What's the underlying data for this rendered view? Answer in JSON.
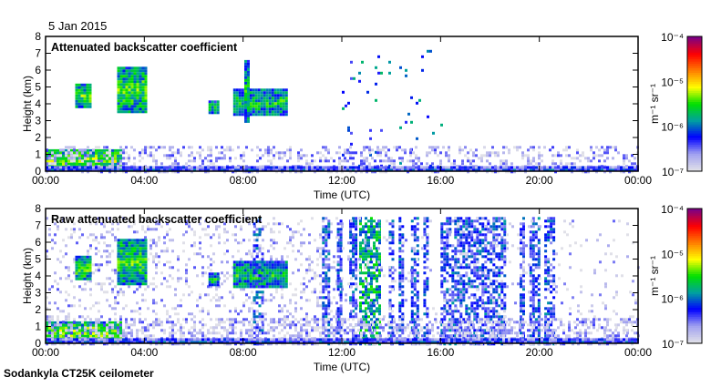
{
  "chart_data": {
    "type": "heatmap",
    "date_label": "5 Jan 2015",
    "footer": "Sodankyla CT25K ceilometer",
    "xlabel": "Time (UTC)",
    "ylabel": "Height (km)",
    "x_ticks": [
      "00:00",
      "04:00",
      "08:00",
      "12:00",
      "16:00",
      "20:00",
      "00:00"
    ],
    "xlim_hours": [
      0,
      24
    ],
    "y_ticks": [
      "0",
      "1",
      "2",
      "3",
      "4",
      "5",
      "6",
      "7",
      "8"
    ],
    "ylim_km": [
      0,
      8
    ],
    "colorbar": {
      "label": "m⁻¹ sr⁻¹",
      "ticks": [
        "10⁻⁷",
        "10⁻⁶",
        "10⁻⁵",
        "10⁻⁴"
      ],
      "range_log10": [
        -7,
        -4
      ],
      "colors": [
        "#e0e0e8",
        "#a0a0f0",
        "#0000ff",
        "#00a0a0",
        "#00e000",
        "#ffff00",
        "#ff8000",
        "#ff0000",
        "#800080"
      ]
    },
    "panels": [
      {
        "title": "Attenuated backscatter coefficient",
        "features": [
          {
            "t": [
              0,
              3.0
            ],
            "h": [
              0.1,
              1.3
            ],
            "level": 0.55
          },
          {
            "t": [
              1.2,
              1.8
            ],
            "h": [
              3.8,
              5.2
            ],
            "level": 0.5
          },
          {
            "t": [
              2.9,
              4.1
            ],
            "h": [
              3.5,
              6.2
            ],
            "level": 0.5
          },
          {
            "t": [
              6.6,
              7.0
            ],
            "h": [
              3.5,
              4.2
            ],
            "level": 0.45
          },
          {
            "t": [
              7.6,
              9.8
            ],
            "h": [
              3.4,
              4.9
            ],
            "level": 0.45
          },
          {
            "t": [
              8.05,
              8.2
            ],
            "h": [
              3.0,
              6.6
            ],
            "level": 0.45
          },
          {
            "t": [
              12.0,
              16.0
            ],
            "h": [
              0.2,
              7.2
            ],
            "level": 0.3,
            "sparse": 0.03
          },
          {
            "t": [
              0,
              24
            ],
            "h": [
              0,
              1.5
            ],
            "level": 0.08,
            "sparse": 0.35
          },
          {
            "t": [
              0,
              24
            ],
            "h": [
              0,
              0.3
            ],
            "level": 0.25
          }
        ]
      },
      {
        "title": "Raw attenuated backscatter coefficient",
        "features": [
          {
            "t": [
              0,
              12
            ],
            "h": [
              0,
              7.5
            ],
            "level": 0.06,
            "sparse": 0.18
          },
          {
            "t": [
              0,
              3.0
            ],
            "h": [
              0.1,
              1.3
            ],
            "level": 0.55
          },
          {
            "t": [
              1.2,
              1.8
            ],
            "h": [
              3.8,
              5.2
            ],
            "level": 0.5
          },
          {
            "t": [
              2.9,
              4.1
            ],
            "h": [
              3.5,
              6.2
            ],
            "level": 0.5
          },
          {
            "t": [
              6.6,
              7.0
            ],
            "h": [
              3.5,
              4.2
            ],
            "level": 0.45
          },
          {
            "t": [
              7.6,
              9.8
            ],
            "h": [
              3.4,
              4.9
            ],
            "level": 0.45
          },
          {
            "t": [
              8.4,
              8.8
            ],
            "h": [
              0,
              7.5
            ],
            "level": 0.25,
            "sparse": 0.5
          },
          {
            "t": [
              11.2,
              11.5
            ],
            "h": [
              0,
              7.5
            ],
            "level": 0.25,
            "sparse": 0.6
          },
          {
            "t": [
              11.8,
              12.0
            ],
            "h": [
              0,
              7.5
            ],
            "level": 0.25,
            "sparse": 0.6
          },
          {
            "t": [
              12.3,
              12.6
            ],
            "h": [
              0,
              7.5
            ],
            "level": 0.25,
            "sparse": 0.6
          },
          {
            "t": [
              12.7,
              13.5
            ],
            "h": [
              0,
              7.5
            ],
            "level": 0.4,
            "sparse": 0.7
          },
          {
            "t": [
              13.9,
              14.1
            ],
            "h": [
              0,
              7.5
            ],
            "level": 0.25,
            "sparse": 0.6
          },
          {
            "t": [
              14.3,
              14.5
            ],
            "h": [
              0,
              7.5
            ],
            "level": 0.25,
            "sparse": 0.6
          },
          {
            "t": [
              14.8,
              15.1
            ],
            "h": [
              0,
              7.5
            ],
            "level": 0.25,
            "sparse": 0.6
          },
          {
            "t": [
              15.3,
              15.5
            ],
            "h": [
              0,
              7.5
            ],
            "level": 0.25,
            "sparse": 0.6
          },
          {
            "t": [
              16.0,
              18.6
            ],
            "h": [
              0,
              7.5
            ],
            "level": 0.25,
            "sparse": 0.6
          },
          {
            "t": [
              19.2,
              19.4
            ],
            "h": [
              0,
              7.5
            ],
            "level": 0.25,
            "sparse": 0.6
          },
          {
            "t": [
              19.6,
              20.0
            ],
            "h": [
              0,
              7.5
            ],
            "level": 0.25,
            "sparse": 0.6
          },
          {
            "t": [
              20.2,
              20.6
            ],
            "h": [
              0,
              7.5
            ],
            "level": 0.25,
            "sparse": 0.6
          },
          {
            "t": [
              12,
              24
            ],
            "h": [
              0,
              7.5
            ],
            "level": 0.05,
            "sparse": 0.06
          },
          {
            "t": [
              0,
              24
            ],
            "h": [
              0,
              1.5
            ],
            "level": 0.08,
            "sparse": 0.4
          },
          {
            "t": [
              0,
              24
            ],
            "h": [
              0,
              0.3
            ],
            "level": 0.25
          }
        ]
      }
    ]
  }
}
